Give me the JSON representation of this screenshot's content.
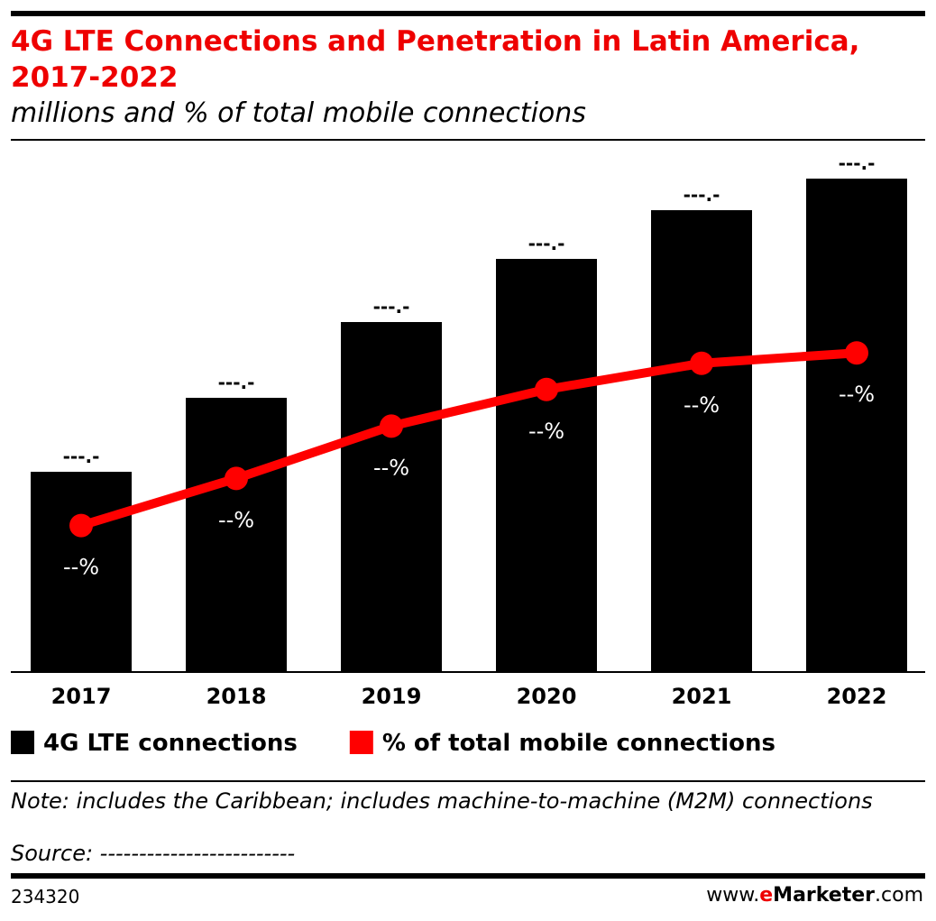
{
  "chart_data": {
    "type": "bar",
    "title": "4G LTE Connections and Penetration in Latin America, 2017-2022",
    "subtitle": "millions and % of total mobile connections",
    "categories": [
      "2017",
      "2018",
      "2019",
      "2020",
      "2021",
      "2022"
    ],
    "ylim": [
      0,
      580
    ],
    "y2lim": [
      0,
      100
    ],
    "series": [
      {
        "name": "4G LTE connections",
        "type": "bar",
        "color": "#000000",
        "values": [
          222,
          304,
          388,
          458,
          512,
          547
        ],
        "value_labels": [
          "---.-",
          "---.-",
          "---.-",
          "---.-",
          "---.-",
          "---.-"
        ]
      },
      {
        "name": "% of total mobile connections",
        "type": "line",
        "axis": "y2",
        "color": "#ff0000",
        "values": [
          28,
          37,
          47,
          54,
          59,
          61
        ],
        "value_labels": [
          "--%",
          "--%",
          "--%",
          "--%",
          "--%",
          "--%"
        ]
      }
    ],
    "note": "Note: includes the Caribbean; includes machine-to-machine (M2M) connections",
    "source": "Source: -------------------------",
    "chart_id": "234320",
    "brand": [
      "www.",
      "e",
      "Marketer",
      ".com"
    ]
  }
}
